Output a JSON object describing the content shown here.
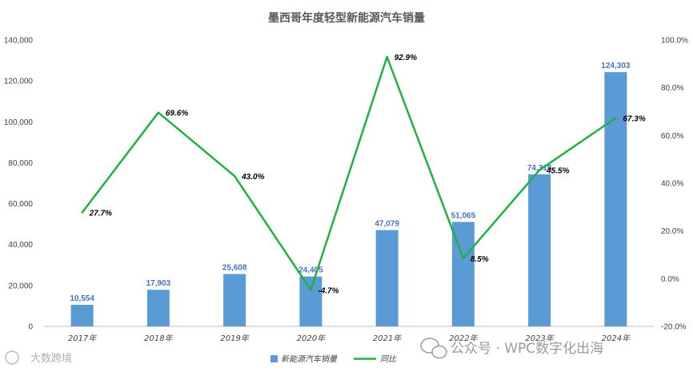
{
  "chart_data": {
    "type": "bar",
    "title": "墨西哥年度轻型新能源汽车销量",
    "categories": [
      "2017年",
      "2018年",
      "2019年",
      "2020年",
      "2021年",
      "2022年",
      "2023年",
      "2024年"
    ],
    "series": [
      {
        "name": "新能源汽车销量",
        "type": "bar",
        "axis": "left",
        "color": "#5b9bd5",
        "values": [
          10554,
          17903,
          25608,
          24405,
          47079,
          51065,
          74318,
          124303
        ],
        "labels": [
          "10,554",
          "17,903",
          "25,608",
          "24,405",
          "47,079",
          "51,065",
          "74,318",
          "124,303"
        ]
      },
      {
        "name": "同比",
        "type": "line",
        "axis": "right",
        "color": "#1fb141",
        "values": [
          27.7,
          69.6,
          43.0,
          -4.7,
          92.9,
          8.5,
          45.5,
          67.3
        ],
        "labels": [
          "27.7%",
          "69.6%",
          "43.0%",
          "-4.7%",
          "92.9%",
          "8.5%",
          "45.5%",
          "67.3%"
        ]
      }
    ],
    "y_left": {
      "range": [
        0,
        140000
      ],
      "ticks": [
        0,
        20000,
        40000,
        60000,
        80000,
        100000,
        120000,
        140000
      ],
      "tick_labels": [
        "0",
        "20,000",
        "40,000",
        "60,000",
        "80,000",
        "100,000",
        "120,000",
        "140,000"
      ]
    },
    "y_right": {
      "range": [
        -20,
        100
      ],
      "ticks": [
        -20,
        0,
        20,
        40,
        60,
        80,
        100
      ],
      "tick_labels": [
        "-20.0%",
        "0.0%",
        "20.0%",
        "40.0%",
        "60.0%",
        "80.0%",
        "100.0%"
      ]
    },
    "grid": false,
    "legend_position": "bottom"
  },
  "watermarks": {
    "bottom_left": "大数跨境",
    "bottom_right": "公众号 · WPC数字化出海"
  }
}
